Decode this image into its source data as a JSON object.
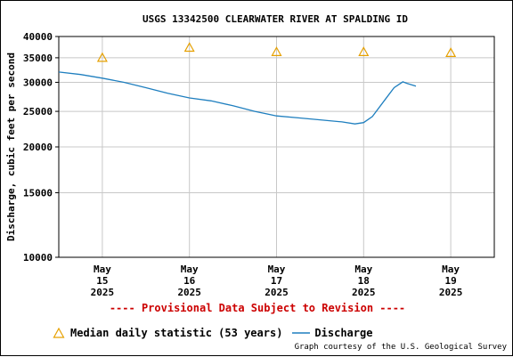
{
  "title": "USGS 13342500 CLEARWATER RIVER AT SPALDING ID",
  "provisional_note": "---- Provisional Data Subject to Revision ----",
  "credit": "Graph courtesy of the U.S. Geological Survey",
  "legend": {
    "median_label": "Median daily statistic (53 years)",
    "discharge_label": "Discharge"
  },
  "colors": {
    "discharge": "#1f7fbf",
    "median": "#e6a000",
    "provisional": "#cc0000",
    "grid": "#c8c8c8"
  },
  "chart_data": {
    "type": "line",
    "title": "USGS 13342500 CLEARWATER RIVER AT SPALDING ID",
    "ylabel": "Discharge, cubic feet per second",
    "xlabel": "",
    "yscale": "log",
    "ylim": [
      10000,
      40000
    ],
    "xlim": [
      14.5,
      19.5
    ],
    "grid": true,
    "y_ticks": [
      {
        "value": 10000,
        "label": "10000"
      },
      {
        "value": 15000,
        "label": "15000"
      },
      {
        "value": 20000,
        "label": "20000"
      },
      {
        "value": 25000,
        "label": "25000"
      },
      {
        "value": 30000,
        "label": "30000"
      },
      {
        "value": 35000,
        "label": "35000"
      },
      {
        "value": 40000,
        "label": "40000"
      }
    ],
    "x_ticks": [
      {
        "value": 15,
        "month": "May",
        "day": "15",
        "year": "2025"
      },
      {
        "value": 16,
        "month": "May",
        "day": "16",
        "year": "2025"
      },
      {
        "value": 17,
        "month": "May",
        "day": "17",
        "year": "2025"
      },
      {
        "value": 18,
        "month": "May",
        "day": "18",
        "year": "2025"
      },
      {
        "value": 19,
        "month": "May",
        "day": "19",
        "year": "2025"
      }
    ],
    "series": [
      {
        "name": "Discharge",
        "type": "line",
        "x": [
          14.5,
          14.75,
          15.0,
          15.25,
          15.5,
          15.75,
          16.0,
          16.25,
          16.5,
          16.75,
          17.0,
          17.25,
          17.5,
          17.75,
          17.9,
          18.0,
          18.1,
          18.25,
          18.35,
          18.45,
          18.5,
          18.6
        ],
        "y": [
          32000,
          31500,
          30800,
          30000,
          29000,
          28000,
          27200,
          26700,
          25900,
          25000,
          24300,
          24000,
          23700,
          23400,
          23100,
          23300,
          24200,
          27000,
          29000,
          30100,
          29800,
          29300
        ]
      },
      {
        "name": "Median daily statistic (53 years)",
        "type": "scatter",
        "marker": "triangle",
        "x": [
          15,
          16,
          17,
          18,
          19
        ],
        "y": [
          35000,
          37300,
          36300,
          36300,
          36100
        ]
      }
    ]
  }
}
